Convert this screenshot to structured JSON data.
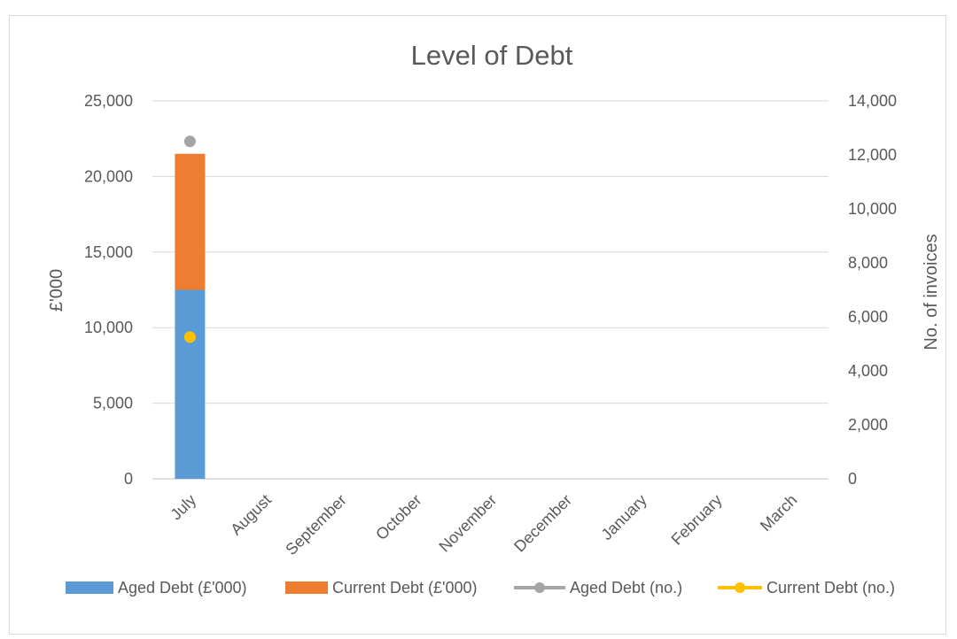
{
  "chart_data": {
    "type": "bar",
    "title": "Level of Debt",
    "categories": [
      "July",
      "August",
      "September",
      "October",
      "November",
      "December",
      "January",
      "February",
      "March"
    ],
    "series": [
      {
        "name": "Aged Debt (£'000)",
        "kind": "stacked-bar",
        "axis": "left",
        "color": "#5b9bd5",
        "values": [
          12500,
          null,
          null,
          null,
          null,
          null,
          null,
          null,
          null
        ]
      },
      {
        "name": "Current Debt (£'000)",
        "kind": "stacked-bar",
        "axis": "left",
        "color": "#ed7d31",
        "values": [
          9000,
          null,
          null,
          null,
          null,
          null,
          null,
          null,
          null
        ]
      },
      {
        "name": "Aged Debt (no.)",
        "kind": "line-marker",
        "axis": "right",
        "color": "#a5a5a5",
        "values": [
          12500,
          null,
          null,
          null,
          null,
          null,
          null,
          null,
          null
        ]
      },
      {
        "name": "Current Debt (no.)",
        "kind": "line-marker",
        "axis": "right",
        "color": "#ffc000",
        "values": [
          5250,
          null,
          null,
          null,
          null,
          null,
          null,
          null,
          null
        ]
      }
    ],
    "ylabel": "£'000",
    "ylim": [
      0,
      25000
    ],
    "yticks": [
      "0",
      "5,000",
      "10,000",
      "15,000",
      "20,000",
      "25,000"
    ],
    "y2label": "No. of invoices",
    "y2lim": [
      0,
      14000
    ],
    "y2ticks": [
      "0",
      "2,000",
      "4,000",
      "6,000",
      "8,000",
      "10,000",
      "12,000",
      "14,000"
    ],
    "grid": true,
    "legend": "bottom"
  }
}
